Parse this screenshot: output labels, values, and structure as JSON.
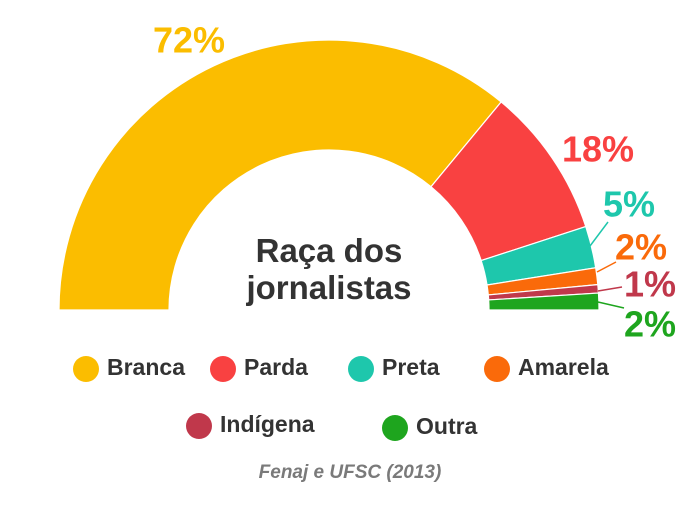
{
  "chart_data": {
    "type": "pie",
    "variant": "half-donut",
    "title_lines": [
      "Raça dos",
      "jornalistas"
    ],
    "source": "Fenaj e UFSC (2013)",
    "legend_position": "bottom",
    "slices": [
      {
        "name": "Branca",
        "value": 72,
        "label": "72%",
        "color": "#fbbd00"
      },
      {
        "name": "Parda",
        "value": 18,
        "label": "18%",
        "color": "#f94141"
      },
      {
        "name": "Preta",
        "value": 5,
        "label": "5%",
        "color": "#1ec7ac"
      },
      {
        "name": "Amarela",
        "value": 2,
        "label": "2%",
        "color": "#fa6a0a"
      },
      {
        "name": "Indígena",
        "value": 1,
        "label": "1%",
        "color": "#c0384b"
      },
      {
        "name": "Outra",
        "value": 2,
        "label": "2%",
        "color": "#1ea51e"
      }
    ]
  }
}
